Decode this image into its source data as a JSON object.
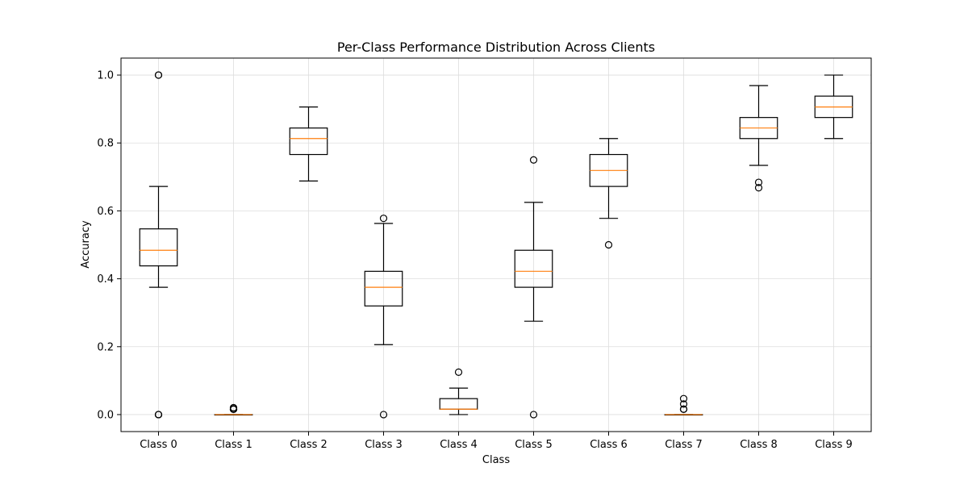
{
  "chart_data": {
    "type": "boxplot",
    "title": "Per-Class Performance Distribution Across Clients",
    "xlabel": "Class",
    "ylabel": "Accuracy",
    "ylim": [
      -0.05,
      1.05
    ],
    "yticks": [
      "0.0",
      "0.2",
      "0.4",
      "0.6",
      "0.8",
      "1.0"
    ],
    "grid": true,
    "categories": [
      "Class 0",
      "Class 1",
      "Class 2",
      "Class 3",
      "Class 4",
      "Class 5",
      "Class 6",
      "Class 7",
      "Class 8",
      "Class 9"
    ],
    "boxes": [
      {
        "whislo": 0.375,
        "q1": 0.438,
        "med": 0.484,
        "q3": 0.547,
        "whishi": 0.672,
        "fliers": [
          1.0,
          1.0,
          0.0,
          0.0,
          0.0
        ]
      },
      {
        "whislo": 0.0,
        "q1": 0.0,
        "med": 0.0,
        "q3": 0.0,
        "whishi": 0.0,
        "fliers": [
          0.016,
          0.016,
          0.02,
          0.02,
          0.016
        ]
      },
      {
        "whislo": 0.688,
        "q1": 0.766,
        "med": 0.813,
        "q3": 0.844,
        "whishi": 0.906,
        "fliers": []
      },
      {
        "whislo": 0.206,
        "q1": 0.32,
        "med": 0.375,
        "q3": 0.422,
        "whishi": 0.563,
        "fliers": [
          0.578,
          0.0
        ]
      },
      {
        "whislo": 0.0,
        "q1": 0.016,
        "med": 0.016,
        "q3": 0.047,
        "whishi": 0.078,
        "fliers": [
          0.125
        ]
      },
      {
        "whislo": 0.275,
        "q1": 0.375,
        "med": 0.422,
        "q3": 0.484,
        "whishi": 0.625,
        "fliers": [
          0.75,
          0.0
        ]
      },
      {
        "whislo": 0.578,
        "q1": 0.672,
        "med": 0.719,
        "q3": 0.766,
        "whishi": 0.813,
        "fliers": [
          0.5
        ]
      },
      {
        "whislo": 0.0,
        "q1": 0.0,
        "med": 0.0,
        "q3": 0.0,
        "whishi": 0.0,
        "fliers": [
          0.016,
          0.016,
          0.031,
          0.047
        ]
      },
      {
        "whislo": 0.734,
        "q1": 0.813,
        "med": 0.844,
        "q3": 0.875,
        "whishi": 0.969,
        "fliers": [
          0.684,
          0.668
        ]
      },
      {
        "whislo": 0.813,
        "q1": 0.875,
        "med": 0.906,
        "q3": 0.938,
        "whishi": 1.0,
        "fliers": []
      }
    ],
    "colors": {
      "box": "#000000",
      "median": "#ff7f0e",
      "grid": "#dddddd"
    }
  }
}
